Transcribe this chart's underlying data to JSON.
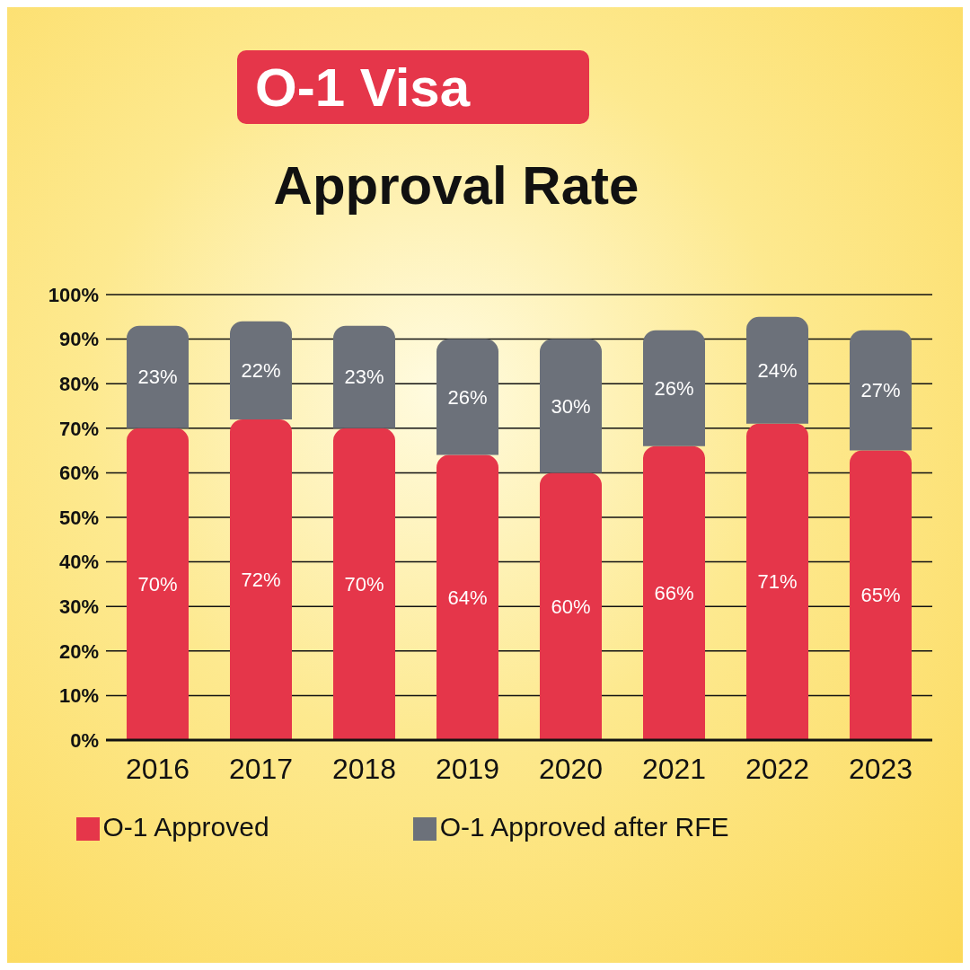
{
  "chart_data": {
    "type": "bar",
    "title": "O-1 Visa",
    "subtitle": "Approval Rate",
    "categories": [
      "2016",
      "2017",
      "2018",
      "2019",
      "2020",
      "2021",
      "2022",
      "2023"
    ],
    "series": [
      {
        "name": "O-1 Approved",
        "color": "#e5364a",
        "values": [
          70,
          72,
          70,
          64,
          60,
          66,
          71,
          65
        ],
        "value_labels": [
          "70%",
          "72%",
          "70%",
          "64%",
          "60%",
          "66%",
          "71%",
          "65%"
        ]
      },
      {
        "name": "O-1 Approved after RFE",
        "color": "#6c717a",
        "values": [
          23,
          22,
          23,
          26,
          30,
          26,
          24,
          27
        ],
        "value_labels": [
          "23%",
          "22%",
          "23%",
          "26%",
          "30%",
          "26%",
          "24%",
          "27%"
        ]
      }
    ],
    "stacked": true,
    "ylim": [
      0,
      100
    ],
    "yticks": [
      {
        "value": 0,
        "label": "0%"
      },
      {
        "value": 10,
        "label": "10%"
      },
      {
        "value": 20,
        "label": "20%"
      },
      {
        "value": 30,
        "label": "30%"
      },
      {
        "value": 40,
        "label": "40%"
      },
      {
        "value": 50,
        "label": "50%"
      },
      {
        "value": 60,
        "label": "60%"
      },
      {
        "value": 70,
        "label": "70%"
      },
      {
        "value": 80,
        "label": "80%"
      },
      {
        "value": 90,
        "label": "90%"
      },
      {
        "value": 100,
        "label": "100%"
      }
    ],
    "grid": "y",
    "legend": "bottom"
  }
}
